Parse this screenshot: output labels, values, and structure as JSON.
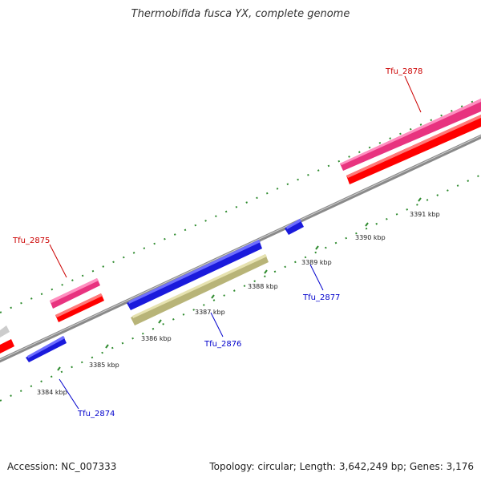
{
  "title": "Thermobifida fusca YX, complete genome",
  "footer": {
    "accession": "Accession: NC_007333",
    "summary": "Topology: circular; Length: 3,642,249 bp; Genes: 3,176"
  },
  "colors": {
    "backbone": "#8a8a8a",
    "tick": "#2e8b2e",
    "forward_gene": "#e8337f",
    "forward_cds": "#ff0000",
    "reverse_gene": "#1a1adc",
    "reverse_pseudo": "#b8b478",
    "unknown": "#cccccc",
    "forward_label": "#cc0000",
    "reverse_label": "#0000cc"
  },
  "scale": {
    "ticks": [
      {
        "label": "3384 kbp"
      },
      {
        "label": "3385 kbp"
      },
      {
        "label": "3386 kbp"
      },
      {
        "label": "3387 kbp"
      },
      {
        "label": "3388 kbp"
      },
      {
        "label": "3389 kbp"
      },
      {
        "label": "3390 kbp"
      },
      {
        "label": "3391 kbp"
      }
    ]
  },
  "genes": [
    {
      "name": "Tfu_2875",
      "strand": "forward"
    },
    {
      "name": "Tfu_2878",
      "strand": "forward"
    },
    {
      "name": "Tfu_2874",
      "strand": "reverse"
    },
    {
      "name": "Tfu_2876",
      "strand": "reverse"
    },
    {
      "name": "Tfu_2877",
      "strand": "reverse"
    }
  ]
}
